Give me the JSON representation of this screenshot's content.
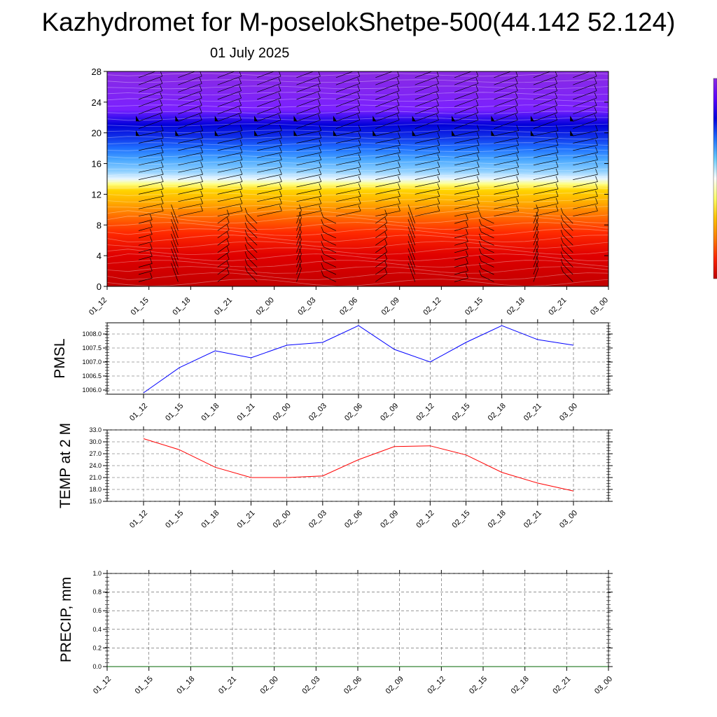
{
  "header": {
    "title": "Kazhydromet for M-poselokShetpe-500(44.142 52.124)",
    "date": "01 July 2025"
  },
  "colors": {
    "pmsl_line": "#0000ff",
    "temp_line": "#ff0000",
    "precip_line": "#006400",
    "palette": [
      "#c00000",
      "#ff2000",
      "#ff7a00",
      "#ffc000",
      "#ffff66",
      "#ffffff",
      "#66ccff",
      "#1e6fff",
      "#0000e0",
      "#5a00ff",
      "#8a2be2"
    ]
  },
  "chart_data": [
    {
      "type": "heatmap",
      "name": "vertical-cross-section",
      "title": "",
      "xlabel": "",
      "ylabel": "",
      "x_ticks": [
        "01_12",
        "01_15",
        "01_18",
        "01_21",
        "02_00",
        "02_03",
        "02_06",
        "02_09",
        "02_12",
        "02_15",
        "02_18",
        "02_21",
        "03_00"
      ],
      "y_ticks": [
        0,
        4,
        8,
        12,
        16,
        20,
        24,
        28
      ],
      "ylim": [
        0,
        28
      ],
      "bands": [
        {
          "y": 0,
          "color": "#c20000"
        },
        {
          "y": 4,
          "color": "#e00000"
        },
        {
          "y": 7,
          "color": "#ff2a00"
        },
        {
          "y": 9,
          "color": "#ff6a00"
        },
        {
          "y": 11,
          "color": "#ffae00"
        },
        {
          "y": 12.5,
          "color": "#ffd400"
        },
        {
          "y": 13.3,
          "color": "#ffff80"
        },
        {
          "y": 14,
          "color": "#e8f6ff"
        },
        {
          "y": 15,
          "color": "#8fd0ff"
        },
        {
          "y": 16.5,
          "color": "#4aa8ff"
        },
        {
          "y": 18,
          "color": "#1e6fff"
        },
        {
          "y": 19.5,
          "color": "#1030e8"
        },
        {
          "y": 21,
          "color": "#0000d8"
        },
        {
          "y": 22,
          "color": "#3a10f0"
        },
        {
          "y": 23,
          "color": "#7a20ff"
        },
        {
          "y": 28,
          "color": "#8a2be2"
        }
      ],
      "wind_barbs": true,
      "colorbar": true
    },
    {
      "type": "line",
      "name": "pmsl",
      "ylabel": "PMSL",
      "categories": [
        "01_12",
        "01_15",
        "01_18",
        "01_21",
        "02_00",
        "02_03",
        "02_06",
        "02_09",
        "02_12",
        "02_15",
        "02_18",
        "02_21",
        "03_00"
      ],
      "values": [
        1005.9,
        1006.8,
        1007.4,
        1007.15,
        1007.6,
        1007.7,
        1008.3,
        1007.45,
        1007.0,
        1007.7,
        1008.3,
        1007.8,
        1007.6
      ],
      "y_ticks": [
        1006.0,
        1006.5,
        1007.0,
        1007.5,
        1008.0
      ],
      "ylim": [
        1005.85,
        1008.4
      ]
    },
    {
      "type": "line",
      "name": "temp",
      "ylabel": "TEMP at 2 M",
      "categories": [
        "01_12",
        "01_15",
        "01_18",
        "01_21",
        "02_00",
        "02_03",
        "02_06",
        "02_09",
        "02_12",
        "02_15",
        "02_18",
        "02_21",
        "03_00"
      ],
      "values": [
        30.8,
        28.0,
        23.6,
        21.0,
        21.0,
        21.4,
        25.5,
        28.8,
        29.0,
        26.7,
        22.3,
        19.6,
        17.6
      ],
      "y_ticks": [
        15.0,
        18.0,
        21.0,
        24.0,
        27.0,
        30.0,
        33.0
      ],
      "ylim": [
        15.0,
        33.0
      ]
    },
    {
      "type": "line",
      "name": "precip",
      "ylabel": "PRECIP, mm",
      "categories": [
        "01_12",
        "01_15",
        "01_18",
        "01_21",
        "02_00",
        "02_03",
        "02_06",
        "02_09",
        "02_12",
        "02_15",
        "02_18",
        "02_21",
        "03_00"
      ],
      "values": [
        0,
        0,
        0,
        0,
        0,
        0,
        0,
        0,
        0,
        0,
        0,
        0,
        0
      ],
      "y_ticks": [
        0.0,
        0.2,
        0.4,
        0.6,
        0.8,
        1.0
      ],
      "ylim": [
        0,
        1.0
      ]
    }
  ]
}
